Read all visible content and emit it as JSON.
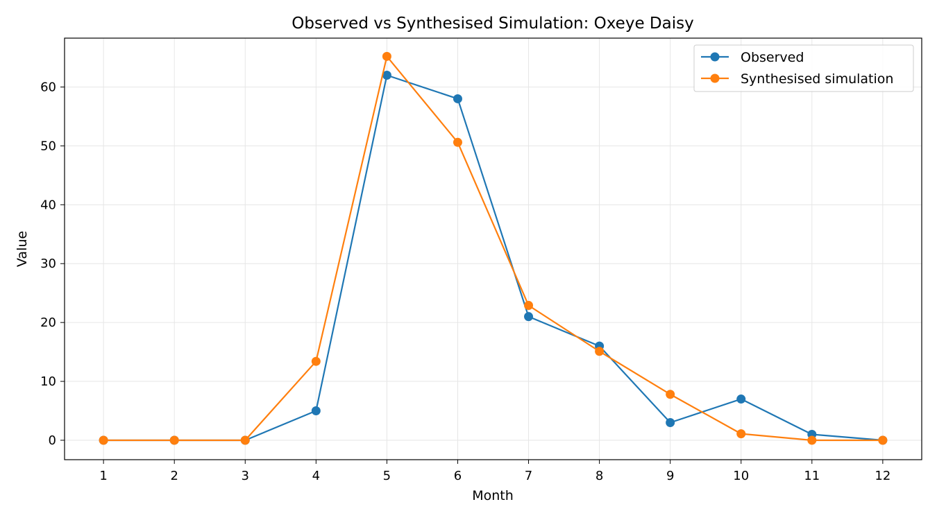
{
  "chart_data": {
    "type": "line",
    "title": "Observed vs Synthesised Simulation: Oxeye Daisy",
    "xlabel": "Month",
    "ylabel": "Value",
    "x": [
      1,
      2,
      3,
      4,
      5,
      6,
      7,
      8,
      9,
      10,
      11,
      12
    ],
    "xlim": [
      0.45,
      12.55
    ],
    "ylim": [
      -3.3,
      68.3
    ],
    "yticks": [
      0,
      10,
      20,
      30,
      40,
      50,
      60
    ],
    "grid": true,
    "legend_position": "top-right",
    "series": [
      {
        "name": "Observed",
        "color": "#1f77b4",
        "marker": "circle",
        "values": [
          0,
          0,
          0,
          5,
          62,
          58,
          21,
          16,
          3,
          7,
          1,
          0
        ]
      },
      {
        "name": "Synthesised simulation",
        "color": "#ff7f0e",
        "marker": "circle",
        "values": [
          0,
          0,
          0,
          13.4,
          65.2,
          50.6,
          22.9,
          15.1,
          7.8,
          1.1,
          0,
          0
        ]
      }
    ]
  }
}
